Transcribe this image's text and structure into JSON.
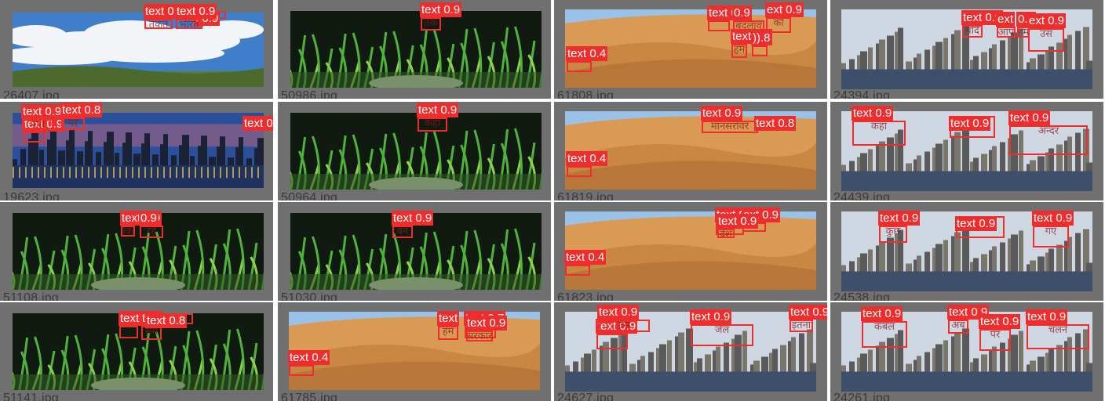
{
  "colors": {
    "tile_bg": "#707070",
    "box": "#ef2d2d",
    "label_text": "#ffffff",
    "filename_text": "#3a3a3a"
  },
  "tiles": [
    {
      "filename": "26407.jpg",
      "scene": "sky",
      "detections": [
        {
          "label": "text 0.9",
          "text": "तकत"
        },
        {
          "label": "t 0.9",
          "text": ""
        },
        {
          "label": "text 0.9",
          "text": "भारत"
        }
      ]
    },
    {
      "filename": "50986.jpg",
      "scene": "aquarium",
      "detections": [
        {
          "label": "text 0.9",
          "text": "तक"
        }
      ]
    },
    {
      "filename": "61808.jpg",
      "scene": "desert",
      "detections": [
        {
          "label": "text 0.9",
          "text": ""
        },
        {
          "label": "0.9",
          "text": "बदलाव"
        },
        {
          "label": "ext 0.9",
          "text": "को"
        },
        {
          "label": "text 0.8",
          "text": "हम"
        },
        {
          "label": ")).8",
          "text": ""
        },
        {
          "label": "text 0.4",
          "text": ""
        }
      ]
    },
    {
      "filename": "24394.jpg",
      "scene": "city",
      "detections": [
        {
          "label": "text 0.9",
          "text": "यदि"
        },
        {
          "label": "ext",
          "text": "आप"
        },
        {
          "label": "0.9",
          "text": "हम"
        },
        {
          "label": "ext 0.9",
          "text": "उस"
        }
      ]
    },
    {
      "filename": "19623.jpg",
      "scene": "citynight",
      "detections": [
        {
          "label": "text 0.9",
          "text": ""
        },
        {
          "label": "text 0.9",
          "text": "नया"
        },
        {
          "label": "text 0.8",
          "text": "पर"
        },
        {
          "label": "text 0.9",
          "text": "कर"
        }
      ]
    },
    {
      "filename": "50964.jpg",
      "scene": "aquarium",
      "detections": [
        {
          "label": "text 0.9",
          "text": "कहा"
        }
      ]
    },
    {
      "filename": "61819.jpg",
      "scene": "desert",
      "detections": [
        {
          "label": "text 0.9",
          "text": "मानसरोवर"
        },
        {
          "label": "text 0.8",
          "text": "ठर"
        },
        {
          "label": "text 0.4",
          "text": ""
        }
      ]
    },
    {
      "filename": "24439.jpg",
      "scene": "city",
      "detections": [
        {
          "label": "text 0.9",
          "text": "कहा"
        },
        {
          "label": "text 0.9",
          "text": "तरह"
        },
        {
          "label": "text 0.9",
          "text": "अन्दर"
        }
      ]
    },
    {
      "filename": "51108.jpg",
      "scene": "aquarium",
      "detections": [
        {
          "label": "text 0.9",
          "text": "कि"
        },
        {
          "label": "0.9",
          "text": "रहे"
        }
      ]
    },
    {
      "filename": "51030.jpg",
      "scene": "aquarium",
      "detections": [
        {
          "label": "text 0.9",
          "text": "बन"
        }
      ]
    },
    {
      "filename": "61823.jpg",
      "scene": "desert",
      "detections": [
        {
          "label": "text 0.3",
          "text": ""
        },
        {
          "label": "ext 0.9",
          "text": ""
        },
        {
          "label": "text 0.9",
          "text": "देश"
        },
        {
          "label": "text 0.4",
          "text": ""
        }
      ]
    },
    {
      "filename": "24538.jpg",
      "scene": "city",
      "detections": [
        {
          "label": "text 0.9",
          "text": "कुछ"
        },
        {
          "label": "text 0.9",
          "text": "पूर्णत"
        },
        {
          "label": "text 0.9",
          "text": "गए"
        }
      ]
    },
    {
      "filename": "51141.jpg",
      "scene": "aquarium",
      "detections": [
        {
          "label": "text 0.9",
          "text": ""
        },
        {
          "label": "text",
          "text": "सम"
        },
        {
          "label": "text 0.8",
          "text": "घर"
        }
      ]
    },
    {
      "filename": "61785.jpg",
      "scene": "desert",
      "detections": [
        {
          "label": "text",
          "text": "हम"
        },
        {
          "label": "text 0.7",
          "text": ""
        },
        {
          "label": "text 0.9",
          "text": "सरकार"
        },
        {
          "label": "text 0.4",
          "text": ""
        }
      ]
    },
    {
      "filename": "24627.jpg",
      "scene": "city",
      "detections": [
        {
          "label": "text 0.9",
          "text": ""
        },
        {
          "label": "text 0.9",
          "text": "जेल"
        },
        {
          "label": "text 0.9",
          "text": "इतना"
        },
        {
          "label": "text 0.9",
          "text": "उस"
        }
      ]
    },
    {
      "filename": "24261.jpg",
      "scene": "city",
      "detections": [
        {
          "label": "text 0.9",
          "text": "कंबल"
        },
        {
          "label": "text 0.9",
          "text": "अब"
        },
        {
          "label": "text 0.9",
          "text": "पर"
        },
        {
          "label": "text 0.9",
          "text": "चलने"
        }
      ]
    }
  ]
}
